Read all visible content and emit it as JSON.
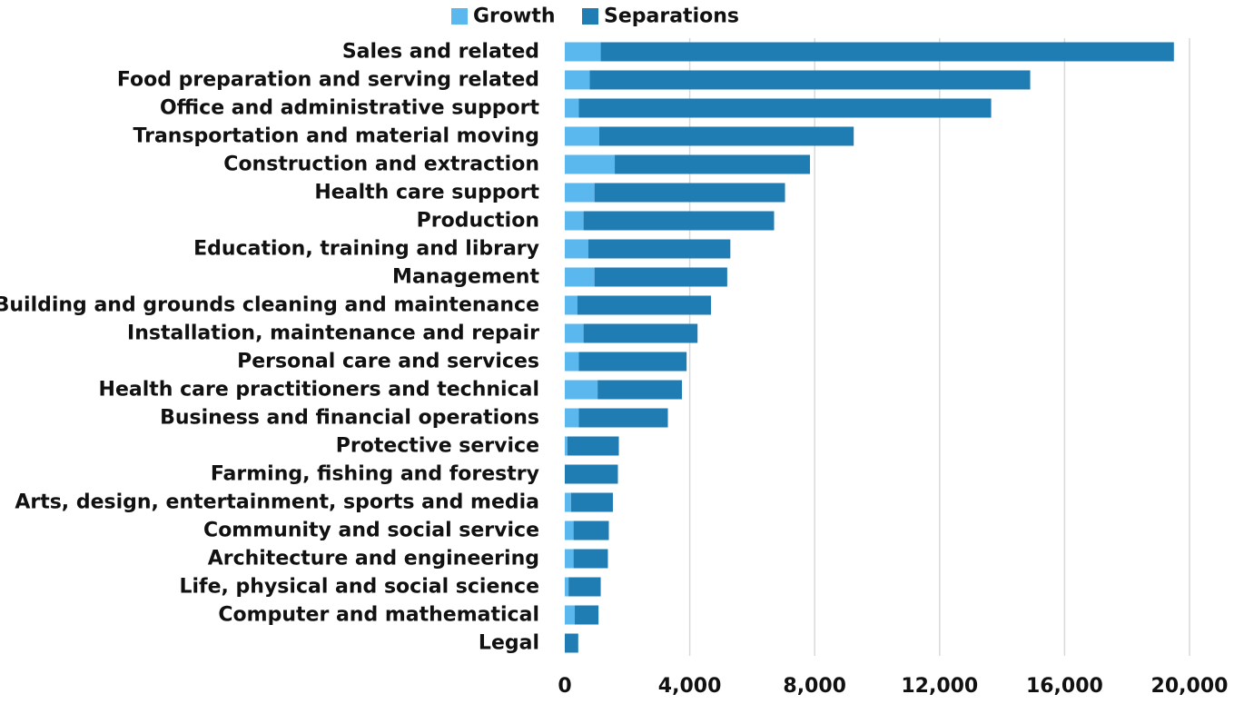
{
  "chart_data": {
    "type": "bar",
    "orientation": "horizontal",
    "stacked": true,
    "categories": [
      "Sales and related",
      "Food preparation and serving related",
      "Office and administrative support",
      "Transportation and material moving",
      "Construction and extraction",
      "Health care support",
      "Production",
      "Education, training and library",
      "Management",
      "Building and grounds cleaning and maintenance",
      "Installation, maintenance and repair",
      "Personal care and services",
      "Health care practitioners and technical",
      "Business and financial operations",
      "Protective service",
      "Farming, fishing and forestry",
      "Arts, design, entertainment, sports and media",
      "Community and social service",
      "Architecture and engineering",
      "Life, physical and social science",
      "Computer and mathematical",
      "Legal"
    ],
    "series": [
      {
        "name": "Growth",
        "color": "#5bb8ee",
        "values": [
          1150,
          800,
          450,
          1100,
          1600,
          950,
          600,
          750,
          950,
          400,
          600,
          450,
          1050,
          450,
          80,
          0,
          200,
          280,
          280,
          120,
          320,
          0
        ]
      },
      {
        "name": "Separations",
        "color": "#1f7db4",
        "values": [
          18350,
          14100,
          13200,
          8150,
          6250,
          6100,
          6100,
          4550,
          4250,
          4280,
          3650,
          3450,
          2700,
          2850,
          1650,
          1700,
          1340,
          1130,
          1100,
          1030,
          760,
          430
        ]
      }
    ],
    "xlim": [
      0,
      20000
    ],
    "xticks": [
      "0",
      "4,000",
      "8,000",
      "12,000",
      "16,000",
      "20,000"
    ],
    "xtick_values": [
      0,
      4000,
      8000,
      12000,
      16000,
      20000
    ],
    "grid": "vertical",
    "legend_position": "top"
  }
}
